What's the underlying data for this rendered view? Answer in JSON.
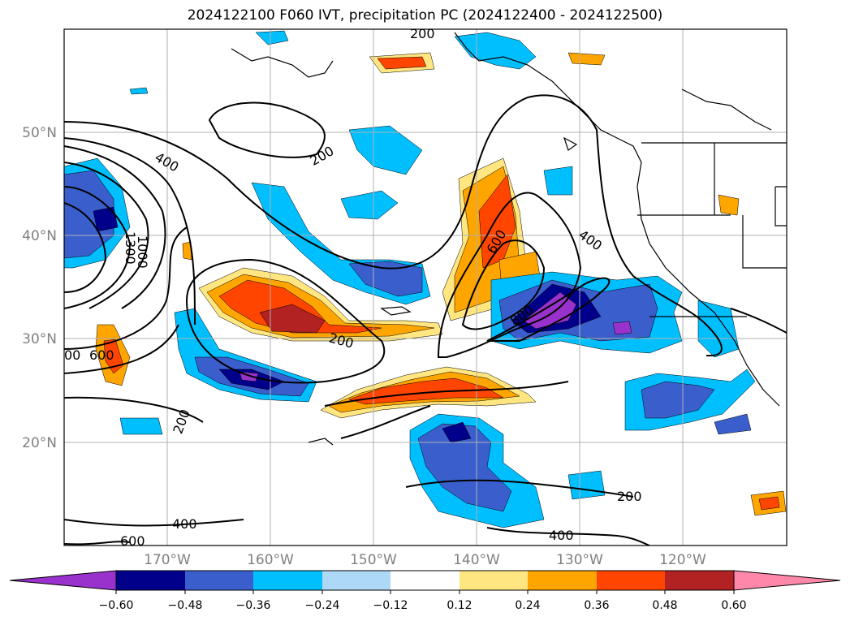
{
  "title": "2024122100 F060 IVT, precipitation PC (2024122400 - 2024122500)",
  "lat_labels": [
    "50°N",
    "40°N",
    "30°N",
    "20°N"
  ],
  "lon_labels": [
    "170°W",
    "160°W",
    "150°W",
    "140°W",
    "130°W",
    "120°W"
  ],
  "contour_labels": [
    "200",
    "400",
    "600",
    "800",
    "1000",
    "1300",
    "1000",
    "400",
    "600",
    "400",
    "200",
    "200",
    "200",
    "600",
    "600",
    "400",
    "200",
    "400",
    "00"
  ],
  "colorbar": {
    "ticks": [
      "−0.60",
      "−0.48",
      "−0.36",
      "−0.24",
      "−0.12",
      "0.12",
      "0.24",
      "0.36",
      "0.48",
      "0.60"
    ],
    "colors": [
      "#9932cc",
      "#00008b",
      "#3a5fcd",
      "#00bfff",
      "#add8f6",
      "#ffffff",
      "#ffe680",
      "#ffa500",
      "#ff4500",
      "#b22222",
      "#ff88aa"
    ]
  },
  "colors": {
    "purple": "#9932cc",
    "navy": "#00008b",
    "blue": "#3a5fcd",
    "cyan": "#00bfff",
    "lightblue": "#add8f6",
    "yellow": "#ffe680",
    "orange": "#ffa500",
    "redorange": "#ff4500",
    "darkred": "#b22222",
    "pink": "#ff88aa"
  }
}
